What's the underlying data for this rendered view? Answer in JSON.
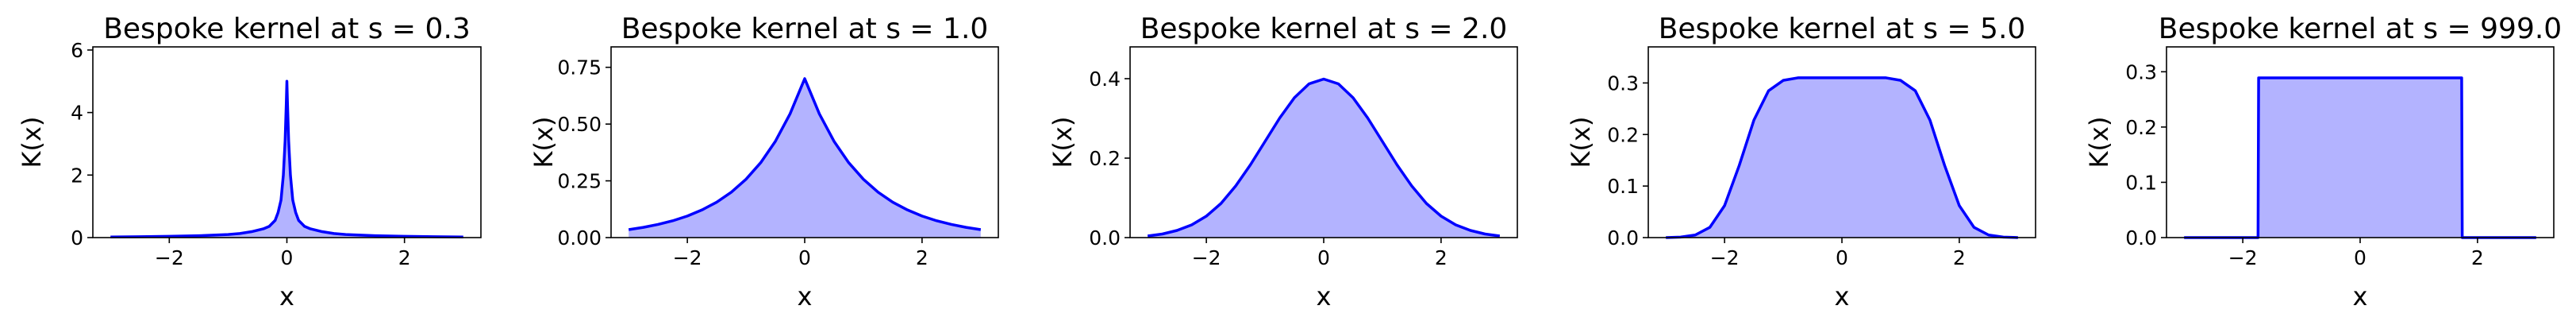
{
  "colors": {
    "line": "#0000ff",
    "fill": "#b3b3ff",
    "axes": "#000000",
    "background": "#ffffff"
  },
  "chart_data": [
    {
      "type": "area",
      "title": "Bespoke kernel at s = 0.3",
      "xlabel": "x",
      "ylabel": "K(x)",
      "xlim": [
        -3.3,
        3.3
      ],
      "ylim": [
        0,
        6.1
      ],
      "xticks": [
        -2,
        0,
        2
      ],
      "xtick_labels": [
        "−2",
        "0",
        "2"
      ],
      "yticks": [
        0,
        2,
        4,
        6
      ],
      "ytick_labels": [
        "0",
        "2",
        "4",
        "6"
      ],
      "x": [
        -3.0,
        -2.5,
        -2.0,
        -1.5,
        -1.0,
        -0.8,
        -0.6,
        -0.4,
        -0.3,
        -0.2,
        -0.15,
        -0.1,
        -0.06,
        -0.03,
        -0.01,
        0,
        0.01,
        0.03,
        0.06,
        0.1,
        0.15,
        0.2,
        0.3,
        0.4,
        0.6,
        0.8,
        1.0,
        1.5,
        2.0,
        2.5,
        3.0
      ],
      "y": [
        0.02,
        0.03,
        0.04,
        0.06,
        0.1,
        0.13,
        0.19,
        0.28,
        0.36,
        0.55,
        0.8,
        1.2,
        2.0,
        3.1,
        4.3,
        5.0,
        4.3,
        3.1,
        2.0,
        1.2,
        0.8,
        0.55,
        0.36,
        0.28,
        0.19,
        0.13,
        0.1,
        0.06,
        0.04,
        0.03,
        0.02
      ]
    },
    {
      "type": "area",
      "title": "Bespoke kernel at s = 1.0",
      "xlabel": "x",
      "ylabel": "K(x)",
      "xlim": [
        -3.3,
        3.3
      ],
      "ylim": [
        0,
        0.84
      ],
      "xticks": [
        -2,
        0,
        2
      ],
      "xtick_labels": [
        "−2",
        "0",
        "2"
      ],
      "yticks": [
        0,
        0.25,
        0.5,
        0.75
      ],
      "ytick_labels": [
        "0.00",
        "0.25",
        "0.50",
        "0.75"
      ],
      "x": [
        -3.0,
        -2.75,
        -2.5,
        -2.25,
        -2.0,
        -1.75,
        -1.5,
        -1.25,
        -1.0,
        -0.75,
        -0.5,
        -0.25,
        0,
        0.25,
        0.5,
        0.75,
        1.0,
        1.25,
        1.5,
        1.75,
        2.0,
        2.25,
        2.5,
        2.75,
        3.0
      ],
      "y": [
        0.035,
        0.045,
        0.058,
        0.074,
        0.095,
        0.122,
        0.156,
        0.2,
        0.257,
        0.33,
        0.424,
        0.545,
        0.7,
        0.545,
        0.424,
        0.33,
        0.257,
        0.2,
        0.156,
        0.122,
        0.095,
        0.074,
        0.058,
        0.045,
        0.035
      ]
    },
    {
      "type": "area",
      "title": "Bespoke kernel at s = 2.0",
      "xlabel": "x",
      "ylabel": "K(x)",
      "xlim": [
        -3.3,
        3.3
      ],
      "ylim": [
        0,
        0.48
      ],
      "xticks": [
        -2,
        0,
        2
      ],
      "xtick_labels": [
        "−2",
        "0",
        "2"
      ],
      "yticks": [
        0,
        0.2,
        0.4
      ],
      "ytick_labels": [
        "0.0",
        "0.2",
        "0.4"
      ],
      "x": [
        -3.0,
        -2.75,
        -2.5,
        -2.25,
        -2.0,
        -1.75,
        -1.5,
        -1.25,
        -1.0,
        -0.75,
        -0.5,
        -0.25,
        0,
        0.25,
        0.5,
        0.75,
        1.0,
        1.25,
        1.5,
        1.75,
        2.0,
        2.25,
        2.5,
        2.75,
        3.0
      ],
      "y": [
        0.004,
        0.009,
        0.018,
        0.032,
        0.054,
        0.086,
        0.13,
        0.183,
        0.242,
        0.301,
        0.352,
        0.387,
        0.399,
        0.387,
        0.352,
        0.301,
        0.242,
        0.183,
        0.13,
        0.086,
        0.054,
        0.032,
        0.018,
        0.009,
        0.004
      ]
    },
    {
      "type": "area",
      "title": "Bespoke kernel at s = 5.0",
      "xlabel": "x",
      "ylabel": "K(x)",
      "xlim": [
        -3.3,
        3.3
      ],
      "ylim": [
        0,
        0.37
      ],
      "xticks": [
        -2,
        0,
        2
      ],
      "xtick_labels": [
        "−2",
        "0",
        "2"
      ],
      "yticks": [
        0,
        0.1,
        0.2,
        0.3
      ],
      "ytick_labels": [
        "0.0",
        "0.1",
        "0.2",
        "0.3"
      ],
      "x": [
        -3.0,
        -2.75,
        -2.5,
        -2.25,
        -2.0,
        -1.75,
        -1.5,
        -1.25,
        -1.0,
        -0.75,
        -0.5,
        -0.25,
        0,
        0.25,
        0.5,
        0.75,
        1.0,
        1.25,
        1.5,
        1.75,
        2.0,
        2.25,
        2.5,
        2.75,
        3.0
      ],
      "y": [
        0.0,
        0.001,
        0.005,
        0.02,
        0.062,
        0.14,
        0.228,
        0.285,
        0.305,
        0.31,
        0.31,
        0.31,
        0.31,
        0.31,
        0.31,
        0.31,
        0.305,
        0.285,
        0.228,
        0.14,
        0.062,
        0.02,
        0.005,
        0.001,
        0.0
      ]
    },
    {
      "type": "area",
      "title": "Bespoke kernel at s = 999.0",
      "xlabel": "x",
      "ylabel": "K(x)",
      "xlim": [
        -3.3,
        3.3
      ],
      "ylim": [
        0,
        0.345
      ],
      "xticks": [
        -2,
        0,
        2
      ],
      "xtick_labels": [
        "−2",
        "0",
        "2"
      ],
      "yticks": [
        0,
        0.1,
        0.2,
        0.3
      ],
      "ytick_labels": [
        "0.0",
        "0.1",
        "0.2",
        "0.3"
      ],
      "x": [
        -3.0,
        -1.74,
        -1.73,
        1.73,
        1.74,
        3.0
      ],
      "y": [
        0.0,
        0.0,
        0.289,
        0.289,
        0.0,
        0.0
      ]
    }
  ]
}
